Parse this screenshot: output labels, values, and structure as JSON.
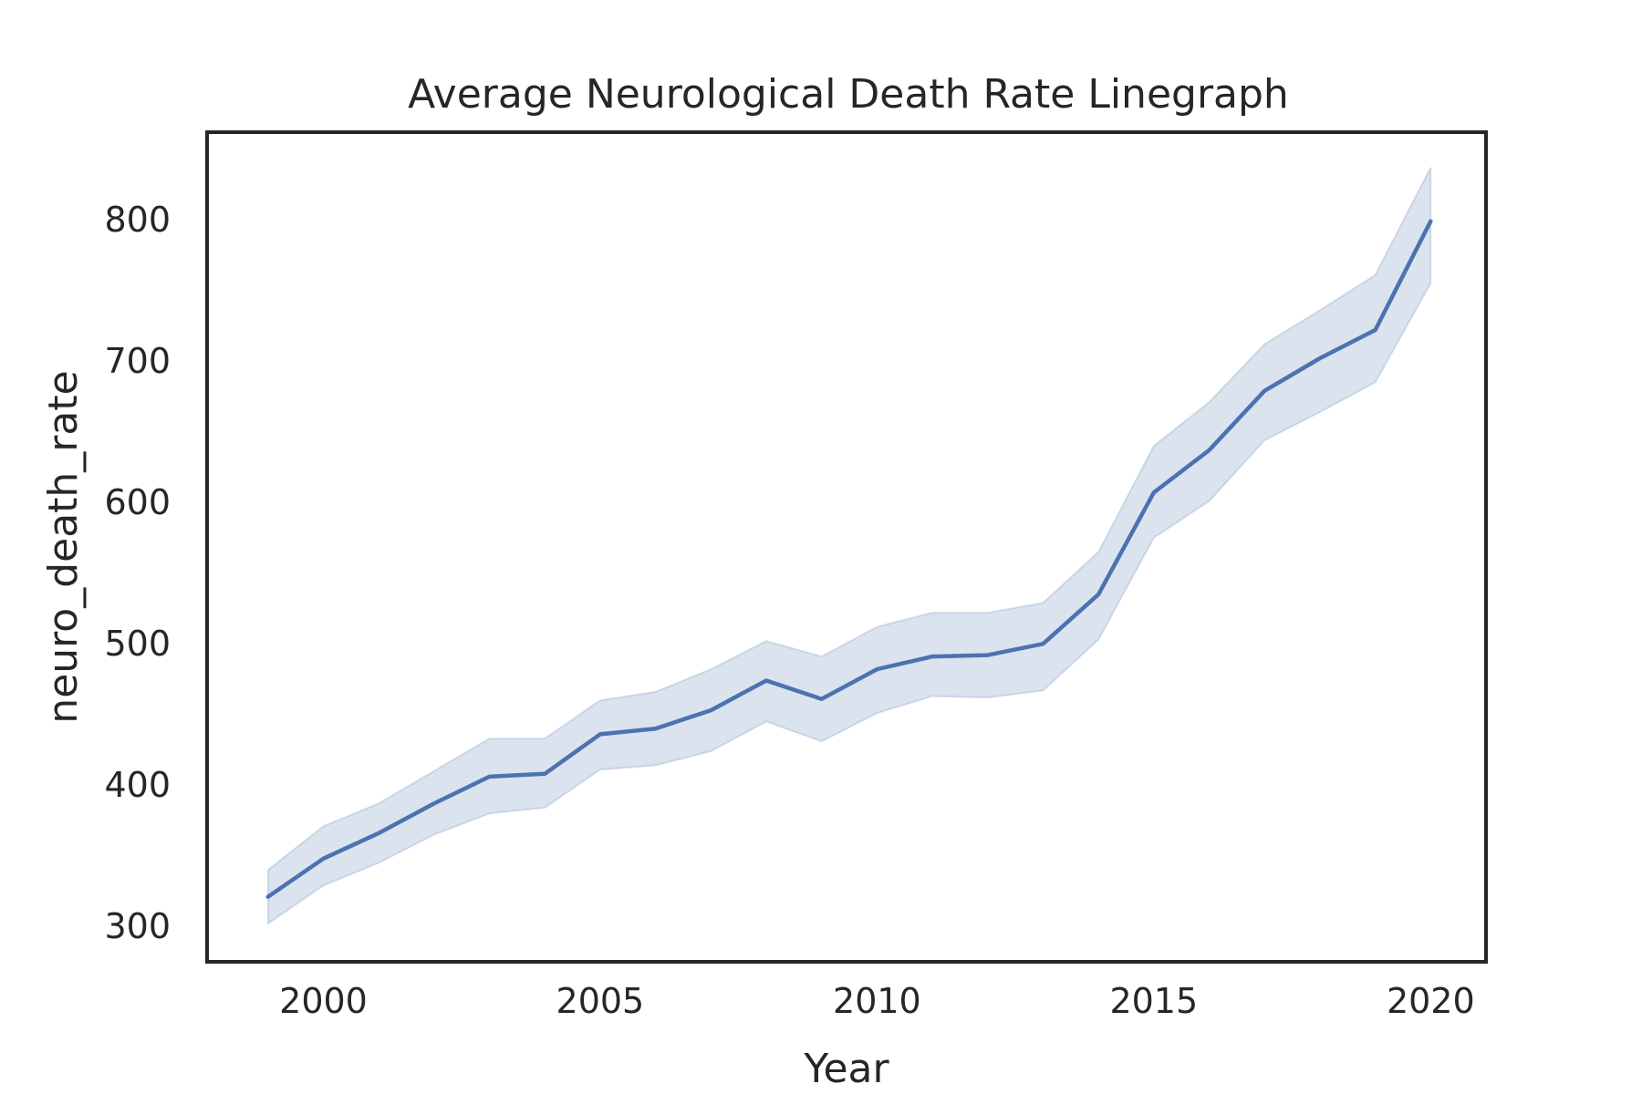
{
  "chart_data": {
    "type": "line",
    "title": "Average Neurological Death Rate Linegraph",
    "xlabel": "Year",
    "ylabel": "neuro_death_rate",
    "xlim": [
      1997.9,
      2021.0
    ],
    "ylim": [
      275,
      862
    ],
    "xticks": [
      2000,
      2005,
      2010,
      2015,
      2020
    ],
    "yticks": [
      300,
      400,
      500,
      600,
      700,
      800
    ],
    "grid": false,
    "colors": {
      "line": "#4c72b0",
      "band": "#4c72b0",
      "frame": "#262626"
    },
    "series": [
      {
        "x": [
          1999,
          2000,
          2001,
          2002,
          2003,
          2004,
          2005,
          2006,
          2007,
          2008,
          2009,
          2010,
          2011,
          2012,
          2013,
          2014,
          2015,
          2016,
          2017,
          2018,
          2019,
          2020
        ],
        "y": [
          321,
          348,
          366,
          387,
          406,
          408,
          436,
          440,
          453,
          474,
          461,
          482,
          491,
          492,
          500,
          535,
          607,
          637,
          679,
          702,
          722,
          799
        ],
        "y_lower": [
          302,
          329,
          345,
          365,
          380,
          384,
          411,
          414,
          424,
          445,
          431,
          451,
          463,
          462,
          467,
          503,
          575,
          601,
          644,
          664,
          685,
          755
        ],
        "y_upper": [
          340,
          371,
          387,
          410,
          433,
          433,
          460,
          466,
          482,
          502,
          491,
          512,
          522,
          522,
          529,
          565,
          640,
          671,
          712,
          736,
          761,
          837
        ]
      }
    ]
  }
}
